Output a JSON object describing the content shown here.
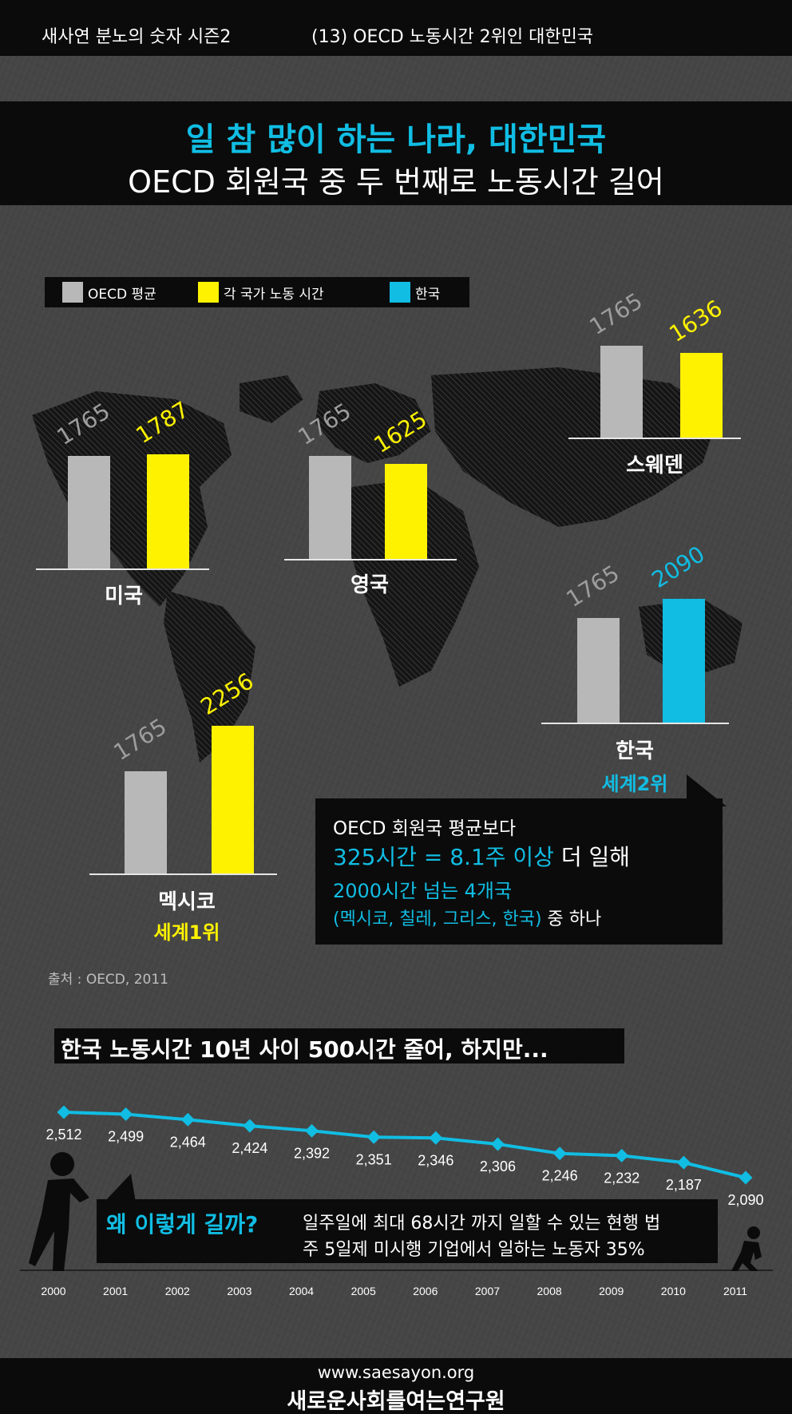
{
  "header": {
    "series": "새사연 분노의 숫자 시즌2",
    "episode": "(13) OECD 노동시간 2위인 대한민국"
  },
  "title": {
    "headline": "일 참 많이 하는 나라, 대한민국",
    "subheadline": "OECD 회원국 중 두 번째로 노동시간 길어"
  },
  "legend": [
    {
      "label": "OECD 평균",
      "color": "#b8b8b8"
    },
    {
      "label": "각 국가 노동 시간",
      "color": "#fff200"
    },
    {
      "label": "한국",
      "color": "#11bde3"
    }
  ],
  "colors": {
    "oecd_avg": "#b8b8b8",
    "country": "#fff200",
    "korea": "#11bde3",
    "accent_cyan": "#11bde3",
    "accent_yellow": "#fff200"
  },
  "chart_data": [
    {
      "type": "bar",
      "title": "",
      "series_names": [
        "OECD 평균",
        "각 국가 노동 시간",
        "한국"
      ],
      "groups": [
        {
          "country": "미국",
          "oecd_avg": 1765,
          "value": 1787,
          "series": "각 국가 노동 시간"
        },
        {
          "country": "영국",
          "oecd_avg": 1765,
          "value": 1625,
          "series": "각 국가 노동 시간"
        },
        {
          "country": "스웨덴",
          "oecd_avg": 1765,
          "value": 1636,
          "series": "각 국가 노동 시간"
        },
        {
          "country": "한국",
          "oecd_avg": 1765,
          "value": 2090,
          "series": "한국",
          "rank": "세계2위"
        },
        {
          "country": "멕시코",
          "oecd_avg": 1765,
          "value": 2256,
          "series": "각 국가 노동 시간",
          "rank": "세계1위"
        }
      ]
    },
    {
      "type": "line",
      "title": "한국 노동시간 10년 사이 500시간 줄어, 하지만...",
      "x": [
        "2000",
        "2001",
        "2002",
        "2003",
        "2004",
        "2005",
        "2006",
        "2007",
        "2008",
        "2009",
        "2010",
        "2011"
      ],
      "values": [
        2512,
        2499,
        2464,
        2424,
        2392,
        2351,
        2346,
        2306,
        2246,
        2232,
        2187,
        2090
      ],
      "labels": [
        "2,512",
        "2,499",
        "2,464",
        "2,424",
        "2,392",
        "2,351",
        "2,346",
        "2,306",
        "2,246",
        "2,232",
        "2,187",
        "2,090"
      ],
      "line_color": "#11bde3"
    }
  ],
  "callout": {
    "line1": "OECD 회원국 평균보다",
    "line2_highlight": "325시간 = 8.1주 이상",
    "line2_rest": " 더 일해",
    "line3": "2000시간 넘는 4개국",
    "line4_highlight": "(멕시코, 칠레, 그리스, 한국)",
    "line4_rest": " 중 하나"
  },
  "source": "출처 : OECD, 2011",
  "why": {
    "title": "왜 이렇게 길까?",
    "line1": "일주일에 최대 68시간 까지 일할 수 있는 현행 법",
    "line2": "주 5일제 미시행 기업에서 일하는 노동자 35%"
  },
  "footer": {
    "url": "www.saesayon.org",
    "org": "새로운사회를여는연구원"
  }
}
